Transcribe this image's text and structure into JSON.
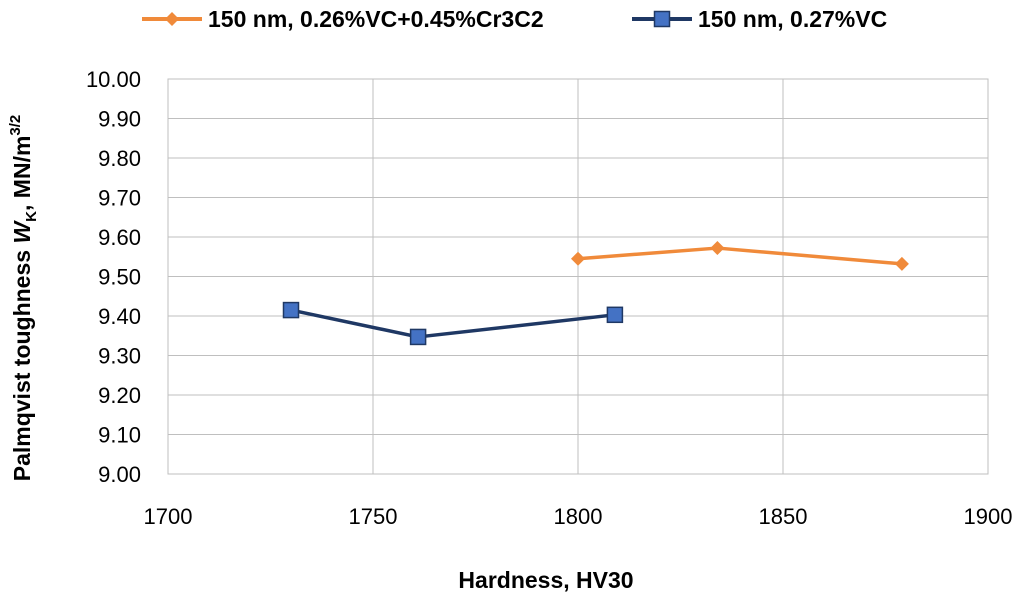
{
  "chart_data": {
    "type": "line",
    "xlabel": "Hardness, HV30",
    "ylabel": {
      "prefix": "Palmqvist toughness ",
      "symbol": "W",
      "subscript": "K",
      "mid": ", MN/m",
      "superscript": "3/2"
    },
    "xlim": [
      1700,
      1900
    ],
    "ylim": [
      9.0,
      10.0
    ],
    "x_ticks": [
      "1700",
      "1750",
      "1800",
      "1850",
      "1900"
    ],
    "y_ticks": [
      "9.00",
      "9.10",
      "9.20",
      "9.30",
      "9.40",
      "9.50",
      "9.60",
      "9.70",
      "9.80",
      "9.90",
      "10.00"
    ],
    "grid": true,
    "legend_position": "top",
    "series": [
      {
        "name": "150 nm, 0.26%VC+0.45%Cr3C2",
        "color": "#F08A3A",
        "marker": "diamond",
        "x": [
          1800,
          1834,
          1879
        ],
        "y": [
          9.545,
          9.572,
          9.532
        ]
      },
      {
        "name": "150 nm, 0.27%VC",
        "color": "#1F3864",
        "marker_fill": "#4472C4",
        "marker": "square",
        "x": [
          1730,
          1761,
          1809
        ],
        "y": [
          9.415,
          9.347,
          9.403
        ]
      }
    ]
  }
}
